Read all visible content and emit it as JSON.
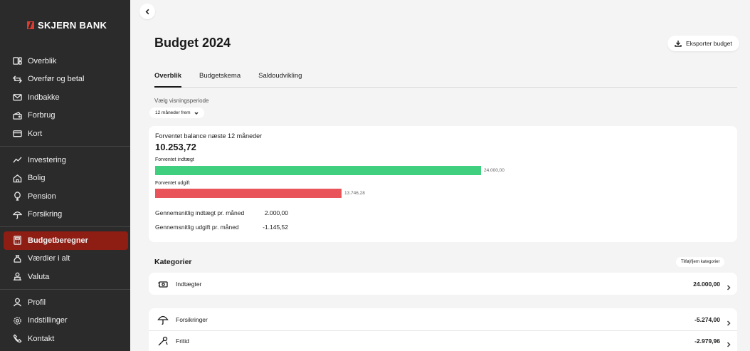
{
  "brand": {
    "name": "SKJERN BANK",
    "accent": "#e03a2f"
  },
  "sidebar": {
    "group1": [
      {
        "label": "Overblik",
        "icon": "overview-icon"
      },
      {
        "label": "Overfør og betal",
        "icon": "transfer-icon"
      },
      {
        "label": "Indbakke",
        "icon": "mail-icon"
      },
      {
        "label": "Forbrug",
        "icon": "wallet-icon"
      },
      {
        "label": "Kort",
        "icon": "card-icon"
      }
    ],
    "group2": [
      {
        "label": "Investering",
        "icon": "chart-line-icon"
      },
      {
        "label": "Bolig",
        "icon": "house-icon"
      },
      {
        "label": "Pension",
        "icon": "balloon-icon"
      },
      {
        "label": "Forsikring",
        "icon": "umbrella-icon"
      }
    ],
    "group3": [
      {
        "label": "Budgetberegner",
        "icon": "calculator-icon",
        "active": true
      },
      {
        "label": "Værdier i alt",
        "icon": "money-bag-icon"
      },
      {
        "label": "Valuta",
        "icon": "currency-exchange-icon"
      }
    ],
    "group4": [
      {
        "label": "Profil",
        "icon": "user-icon"
      },
      {
        "label": "Indstillinger",
        "icon": "gear-icon"
      },
      {
        "label": "Kontakt",
        "icon": "phone-icon"
      }
    ]
  },
  "header": {
    "title": "Budget 2024",
    "export_label": "Eksporter budget"
  },
  "tabs": [
    {
      "label": "Overblik",
      "active": true
    },
    {
      "label": "Budgetskema",
      "active": false
    },
    {
      "label": "Saldoudvikling",
      "active": false
    }
  ],
  "period": {
    "label": "Vælg visningsperiode",
    "selected": "12 måneder frem"
  },
  "balance": {
    "label": "Forventet balance næste 12 måneder",
    "value": "10.253,72",
    "income_label": "Forventet indtægt",
    "income_value": "24.000,00",
    "income_amount": 24000,
    "income_color": "#3fcf7f",
    "expense_label": "Forventet udgift",
    "expense_value": "13.746,28",
    "expense_amount": 13746.28,
    "expense_color": "#e9545a",
    "avg_income_label": "Gennemsnitlig indtægt pr. måned",
    "avg_income_value": "2.000,00",
    "avg_expense_label": "Gennemsnitlig udgift pr. måned",
    "avg_expense_value": "-1.145,52"
  },
  "categories": {
    "title": "Kategorier",
    "edit_label": "Tilføj/fjern kategorier",
    "income": {
      "label": "Indtægter",
      "amount": "24.000,00",
      "icon": "cash-icon"
    },
    "expenses": [
      {
        "label": "Forsikringer",
        "amount": "-5.274,00",
        "icon": "umbrella-icon"
      },
      {
        "label": "Fritid",
        "amount": "-2.979,96",
        "icon": "leisure-icon"
      }
    ]
  }
}
